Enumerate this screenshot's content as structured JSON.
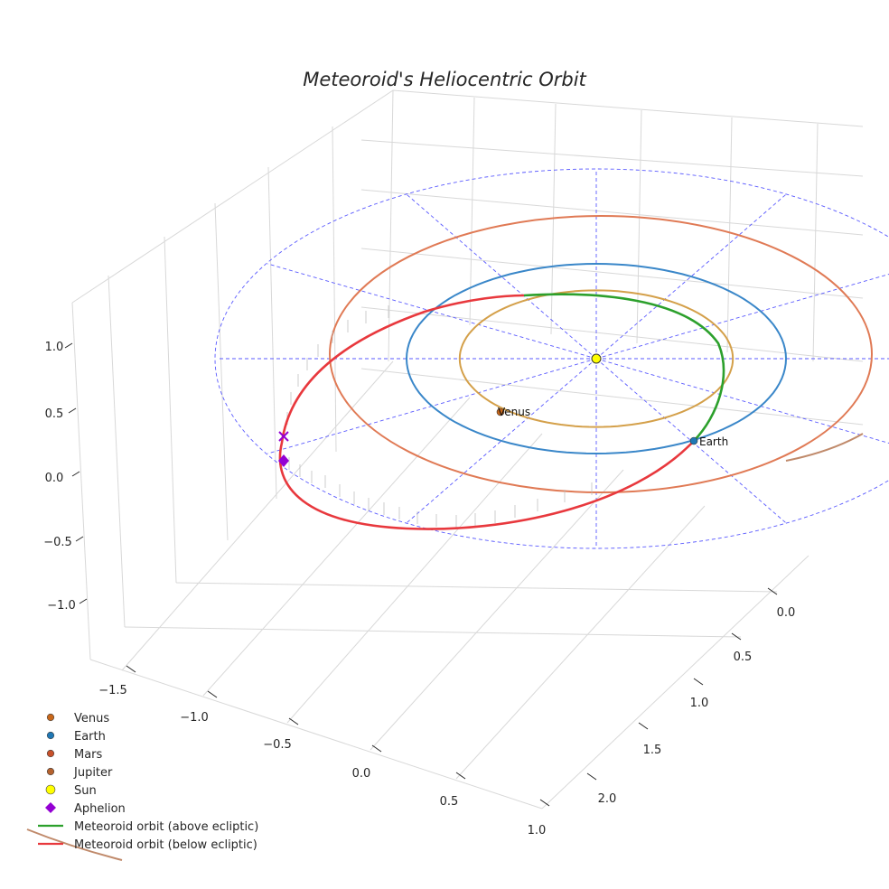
{
  "chart_data": {
    "type": "line",
    "projection": "3d",
    "title": "Meteoroid's Heliocentric Orbit",
    "xlabel": "",
    "ylabel": "",
    "zlabel": "",
    "x_ticks": [
      "−1.5",
      "−1.0",
      "−0.5",
      "0.0",
      "0.5",
      "1.0"
    ],
    "y_ticks": [
      "0.0",
      "0.5",
      "1.0",
      "1.5",
      "2.0"
    ],
    "z_ticks": [
      "1.0",
      "0.5",
      "0.0",
      "−0.5",
      "−1.0"
    ],
    "xlim": [
      -1.75,
      1.2
    ],
    "ylim": [
      -0.2,
      2.3
    ],
    "zlim": [
      -1.3,
      1.3
    ],
    "planets": [
      {
        "name": "Venus",
        "orbit_radius_au": 0.72,
        "color": "#d4a04a",
        "marker_color": "#c8671a",
        "label": "Venus"
      },
      {
        "name": "Earth",
        "orbit_radius_au": 1.0,
        "color": "#3a87c9",
        "marker_color": "#1f77b4",
        "label": "Earth"
      },
      {
        "name": "Mars",
        "orbit_radius_au": 1.52,
        "color": "#e07a55",
        "marker_color": "#c7502a"
      },
      {
        "name": "Jupiter",
        "orbit_radius_au": 5.2,
        "color": "#c08a6b",
        "marker_color": "#b5622e"
      }
    ],
    "sun": {
      "name": "Sun",
      "x": 0,
      "y": 0,
      "z": 0,
      "color": "#ffff00"
    },
    "aphelion": {
      "name": "Aphelion",
      "color": "#9400d3"
    },
    "series": [
      {
        "name": "Meteoroid orbit (above ecliptic)",
        "color": "#2ca02c"
      },
      {
        "name": "Meteoroid orbit (below ecliptic)",
        "color": "#e8383d"
      }
    ],
    "ecliptic_grid": {
      "style": "dashed",
      "color": "#5a5aff"
    },
    "legend": {
      "placement": "bottom-left",
      "entries": [
        {
          "label": "Venus",
          "marker": "circle",
          "color": "#c8671a"
        },
        {
          "label": "Earth",
          "marker": "circle",
          "color": "#1f77b4"
        },
        {
          "label": "Mars",
          "marker": "circle",
          "color": "#c7502a"
        },
        {
          "label": "Jupiter",
          "marker": "circle",
          "color": "#b5622e"
        },
        {
          "label": "Sun",
          "marker": "circle",
          "color": "#ffff00"
        },
        {
          "label": "Aphelion",
          "marker": "diamond",
          "color": "#9400d3"
        },
        {
          "label": "Meteoroid orbit (above ecliptic)",
          "marker": "line",
          "color": "#2ca02c"
        },
        {
          "label": "Meteoroid orbit (below ecliptic)",
          "marker": "line",
          "color": "#e8383d"
        }
      ]
    }
  }
}
